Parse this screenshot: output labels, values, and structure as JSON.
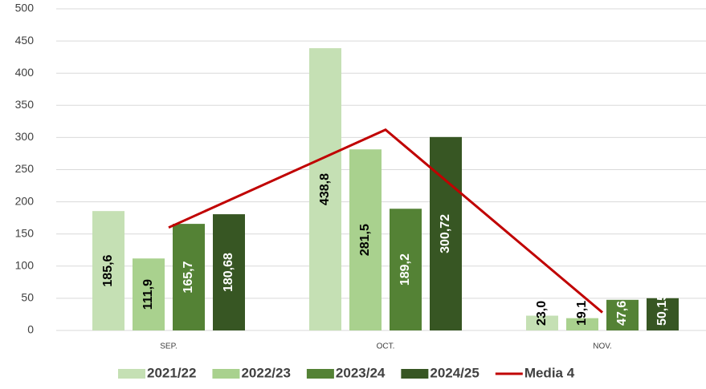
{
  "chart_data": {
    "type": "bar",
    "categories": [
      "SEP.",
      "OCT.",
      "NOV."
    ],
    "series": [
      {
        "name": "2021/22",
        "color": "#c5e0b4",
        "label_color": "#000000",
        "values": [
          185.6,
          438.8,
          23.0
        ],
        "value_labels": [
          "185,6",
          "438,8",
          "23,0"
        ]
      },
      {
        "name": "2022/23",
        "color": "#a9d18e",
        "label_color": "#000000",
        "values": [
          111.9,
          281.5,
          19.1
        ],
        "value_labels": [
          "111,9",
          "281,5",
          "19,1"
        ]
      },
      {
        "name": "2023/24",
        "color": "#548235",
        "label_color": "#ffffff",
        "values": [
          165.7,
          189.2,
          47.6
        ],
        "value_labels": [
          "165,7",
          "189,2",
          "47,6"
        ]
      },
      {
        "name": "2024/25",
        "color": "#375623",
        "label_color": "#ffffff",
        "values": [
          180.68,
          300.72,
          50.15
        ],
        "value_labels": [
          "180,68",
          "300,72",
          "50,15"
        ]
      },
      {
        "name": "Media 4",
        "type": "line",
        "color": "#c00000",
        "values": [
          160,
          312,
          28
        ]
      }
    ],
    "ylim": [
      0,
      500
    ],
    "yticks": [
      0,
      50,
      100,
      150,
      200,
      250,
      300,
      350,
      400,
      450,
      500
    ],
    "grid": true,
    "legend": "bottom"
  }
}
